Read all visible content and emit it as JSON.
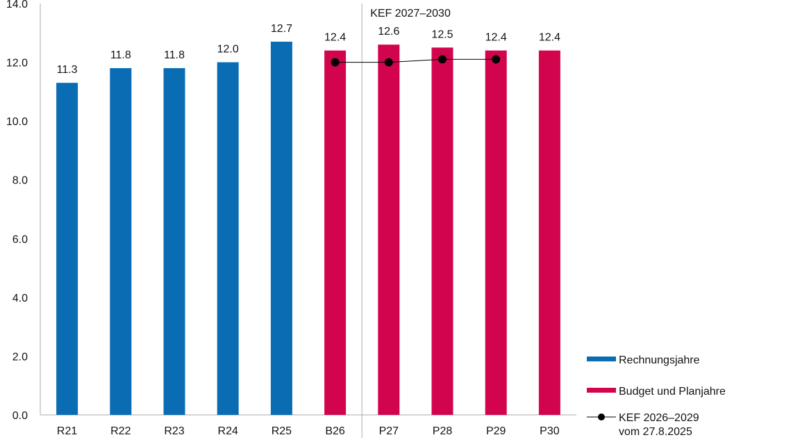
{
  "chart_data": {
    "type": "bar",
    "categories": [
      "R21",
      "R22",
      "R23",
      "R24",
      "R25",
      "B26",
      "P27",
      "P28",
      "P29",
      "P30"
    ],
    "values": [
      11.3,
      11.8,
      11.8,
      12.0,
      12.7,
      12.4,
      12.6,
      12.5,
      12.4,
      12.4
    ],
    "value_labels": [
      "11.3",
      "11.8",
      "11.8",
      "12.0",
      "12.7",
      "12.4",
      "12.6",
      "12.5",
      "12.4",
      "12.4"
    ],
    "bar_groups": [
      "Rechnungsjahre",
      "Rechnungsjahre",
      "Rechnungsjahre",
      "Rechnungsjahre",
      "Rechnungsjahre",
      "Budget und Planjahre",
      "Budget und Planjahre",
      "Budget und Planjahre",
      "Budget und Planjahre",
      "Budget und Planjahre"
    ],
    "line_series": {
      "name": "KEF 2026–2029 vom 27.8.2025",
      "name_lines": [
        "KEF 2026–2029",
        "vom 27.8.2025"
      ],
      "categories": [
        "B26",
        "P27",
        "P28",
        "P29"
      ],
      "values": [
        12.0,
        12.0,
        12.1,
        12.1
      ]
    },
    "ylim": [
      0,
      14
    ],
    "yticks": [
      0,
      2,
      4,
      6,
      8,
      10,
      12,
      14
    ],
    "ytick_labels": [
      "0.0",
      "2.0",
      "4.0",
      "6.0",
      "8.0",
      "10.0",
      "12.0",
      "14.0"
    ],
    "divider_after": "B26",
    "divider_label": "KEF 2027–2030",
    "legend": {
      "position": "bottom-right",
      "items": [
        {
          "label": "Rechnungsjahre",
          "kind": "bar",
          "color": "#0a6db4"
        },
        {
          "label": "Budget und Planjahre",
          "kind": "bar",
          "color": "#d2044e"
        },
        {
          "label": "KEF 2026–2029 vom 27.8.2025",
          "kind": "line",
          "color": "#000000"
        }
      ]
    },
    "colors": {
      "Rechnungsjahre": "#0a6db4",
      "Budget und Planjahre": "#d2044e",
      "line": "#000000",
      "axis": "#aaaaaa"
    }
  }
}
